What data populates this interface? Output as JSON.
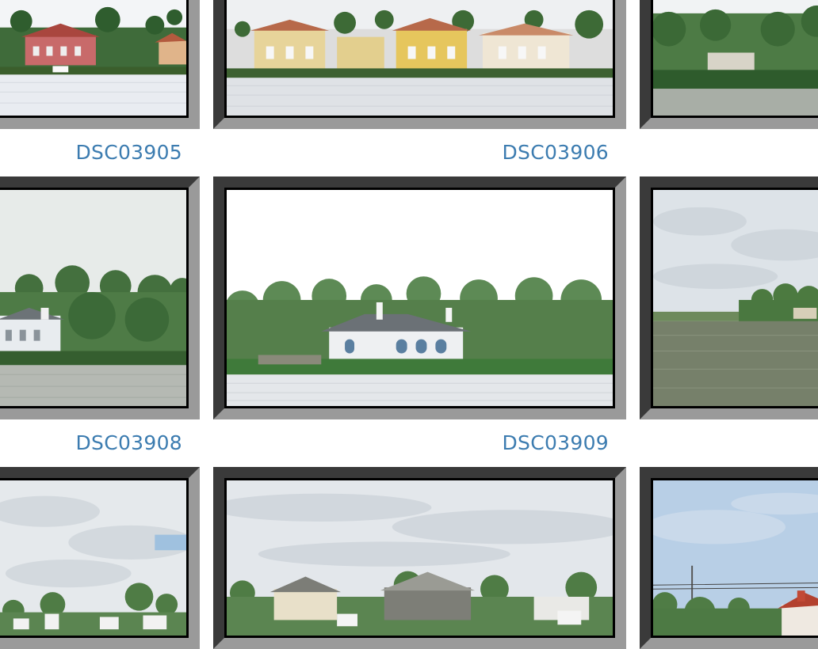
{
  "gallery": {
    "items": [
      {
        "id": "a1",
        "caption": "DSC03905",
        "scene": "pink-villa"
      },
      {
        "id": "a2",
        "caption": "DSC03906",
        "scene": "yellow-villas"
      },
      {
        "id": "a3",
        "caption": "",
        "scene": "green-shore"
      },
      {
        "id": "b1",
        "caption": "DSC03908",
        "scene": "white-house-trees"
      },
      {
        "id": "b2",
        "caption": "DSC03909",
        "scene": "grey-roof-house"
      },
      {
        "id": "b3",
        "caption": "",
        "scene": "open-water-point"
      },
      {
        "id": "c1",
        "caption": "",
        "scene": "marina-cloudy"
      },
      {
        "id": "c2",
        "caption": "",
        "scene": "grey-houses-shore"
      },
      {
        "id": "c3",
        "caption": "",
        "scene": "red-roof-blue-sky"
      }
    ]
  },
  "colors": {
    "caption": "#3c7cb0",
    "frame_dark": "#3a3a3a",
    "frame_light": "#9a9a9a"
  }
}
